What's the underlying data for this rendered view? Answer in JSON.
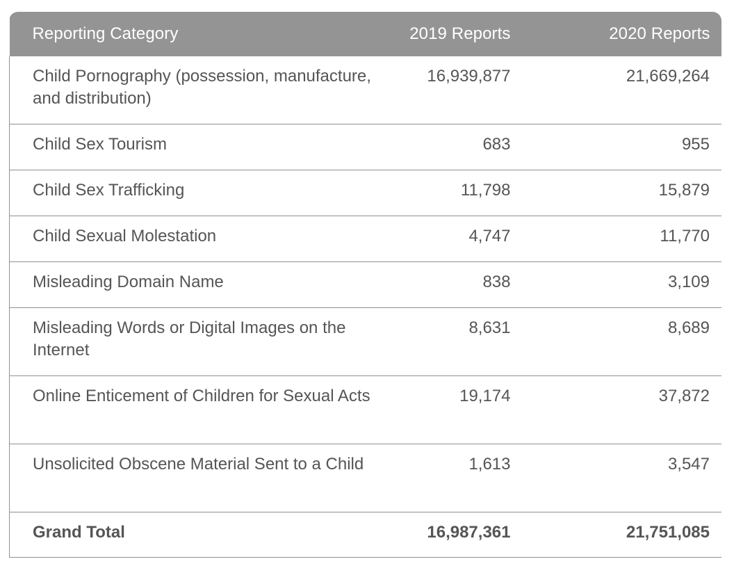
{
  "table": {
    "headers": [
      "Reporting Category",
      "2019 Reports",
      "2020 Reports"
    ],
    "rows": [
      {
        "category": "Child Pornography (possession, manufacture, and distribution)",
        "y2019": "16,939,877",
        "y2020": "21,669,264"
      },
      {
        "category": "Child Sex Tourism",
        "y2019": "683",
        "y2020": "955"
      },
      {
        "category": "Child Sex Trafficking",
        "y2019": "11,798",
        "y2020": "15,879"
      },
      {
        "category": "Child Sexual Molestation",
        "y2019": "4,747",
        "y2020": "11,770"
      },
      {
        "category": "Misleading Domain Name",
        "y2019": "838",
        "y2020": "3,109"
      },
      {
        "category": "Misleading Words or Digital Images on the Internet",
        "y2019": "8,631",
        "y2020": "8,689"
      },
      {
        "category": "Online Enticement of Children for Sexual Acts",
        "y2019": "19,174",
        "y2020": "37,872"
      },
      {
        "category": "Unsolicited Obscene Material Sent to a Child",
        "y2019": "1,613",
        "y2020": "3,547"
      }
    ],
    "total": {
      "category": "Grand Total",
      "y2019": "16,987,361",
      "y2020": "21,751,085"
    }
  },
  "colors": {
    "header_bg": "#949494",
    "header_text": "#ffffff",
    "body_text": "#555555",
    "rule": "#8f8f8f"
  }
}
